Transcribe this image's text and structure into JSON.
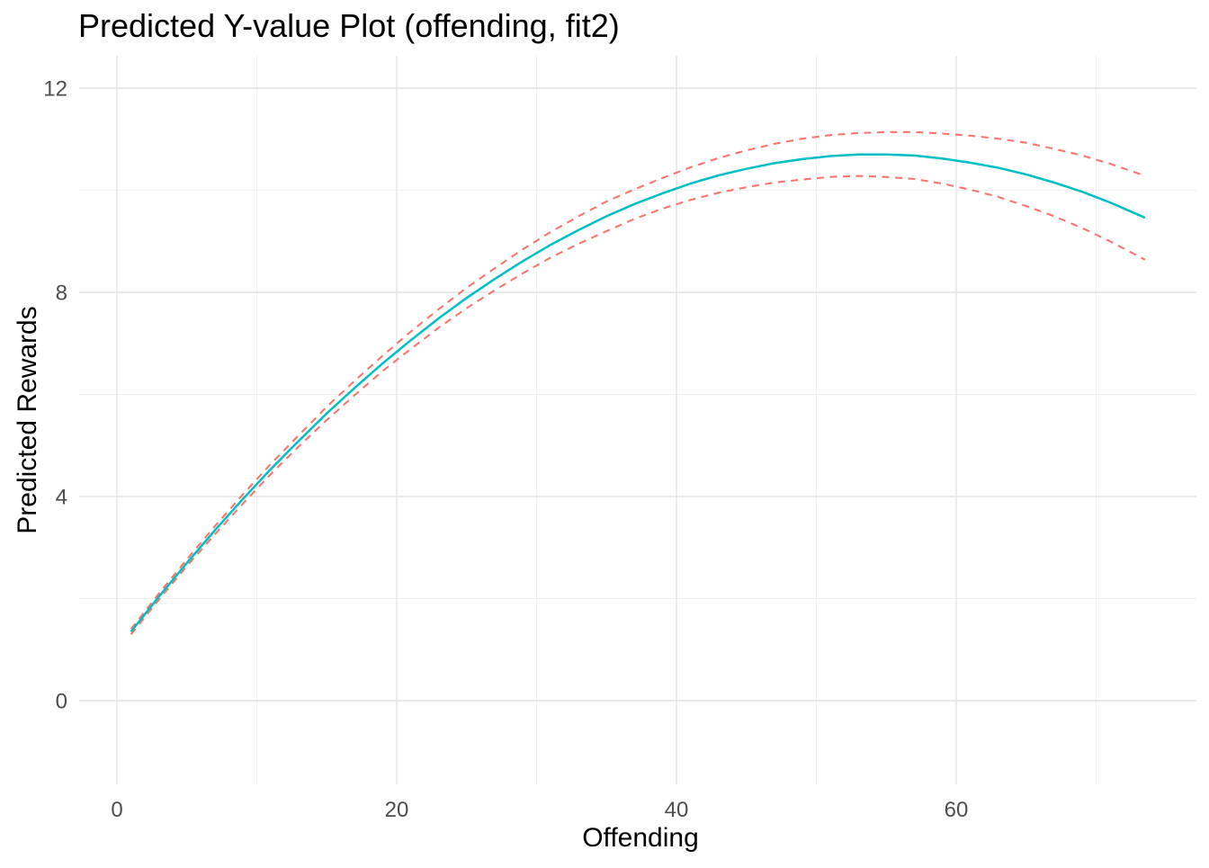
{
  "title": "Predicted Y-value Plot (offending, fit2)",
  "axes": {
    "x": {
      "label": "Offending",
      "tick_labels": [
        "0",
        "20",
        "40",
        "60"
      ],
      "tick_values": [
        0,
        20,
        40,
        60
      ],
      "minor_values": [
        10,
        30,
        50,
        70
      ]
    },
    "y": {
      "label": "Predicted Rewards",
      "tick_labels": [
        "0",
        "4",
        "8",
        "12"
      ],
      "tick_values": [
        0,
        4,
        8,
        12
      ],
      "minor_values": [
        2,
        6,
        10
      ]
    }
  },
  "colors": {
    "fit_line": "#00BFC4",
    "ci_line": "#F8766D",
    "grid_major": "#E4E4E4",
    "grid_minor": "#F0F0F0",
    "tick_text": "#4D4D4D",
    "title_text": "#000000",
    "axis_title_text": "#000000",
    "background": "#FFFFFF"
  },
  "chart_data": {
    "type": "line",
    "title": "Predicted Y-value Plot (offending, fit2)",
    "xlabel": "Offending",
    "ylabel": "Predicted Rewards",
    "xlim": [
      -2.7,
      77.2
    ],
    "ylim": [
      -1.65,
      12.65
    ],
    "grid": "major+minor",
    "legend": "none",
    "x": [
      1,
      3,
      5,
      7,
      9,
      11,
      13,
      15,
      17,
      19,
      21,
      23,
      25,
      27,
      29,
      31,
      33,
      35,
      37,
      39,
      41,
      43,
      45,
      47,
      49,
      51,
      53,
      55,
      57,
      59,
      61,
      63,
      65,
      67,
      69,
      71,
      73,
      73.5
    ],
    "series": [
      {
        "name": "fit",
        "line_style": "solid",
        "color": "#00BFC4",
        "values": [
          1.35,
          2.04,
          2.7,
          3.34,
          3.95,
          4.54,
          5.09,
          5.63,
          6.13,
          6.61,
          7.06,
          7.49,
          7.89,
          8.26,
          8.61,
          8.93,
          9.22,
          9.49,
          9.73,
          9.94,
          10.13,
          10.29,
          10.42,
          10.53,
          10.61,
          10.67,
          10.7,
          10.7,
          10.68,
          10.62,
          10.54,
          10.44,
          10.31,
          10.15,
          9.97,
          9.76,
          9.52,
          9.46
        ]
      },
      {
        "name": "upper_ci",
        "line_style": "dashed",
        "color": "#F8766D",
        "values": [
          1.4,
          2.1,
          2.77,
          3.42,
          4.04,
          4.64,
          5.2,
          5.76,
          6.27,
          6.76,
          7.23,
          7.67,
          8.09,
          8.47,
          8.84,
          9.18,
          9.49,
          9.78,
          10.02,
          10.24,
          10.45,
          10.63,
          10.78,
          10.91,
          11.01,
          11.08,
          11.12,
          11.14,
          11.14,
          11.11,
          11.07,
          11.01,
          10.93,
          10.81,
          10.68,
          10.52,
          10.33,
          10.28
        ]
      },
      {
        "name": "lower_ci",
        "line_style": "dashed",
        "color": "#F8766D",
        "values": [
          1.3,
          1.98,
          2.64,
          3.26,
          3.86,
          4.44,
          4.98,
          5.5,
          5.99,
          6.46,
          6.89,
          7.31,
          7.69,
          8.04,
          8.37,
          8.68,
          8.95,
          9.2,
          9.44,
          9.64,
          9.81,
          9.95,
          10.06,
          10.15,
          10.21,
          10.26,
          10.28,
          10.26,
          10.22,
          10.13,
          10.01,
          9.87,
          9.69,
          9.49,
          9.26,
          9.0,
          8.71,
          8.64
        ]
      }
    ]
  }
}
